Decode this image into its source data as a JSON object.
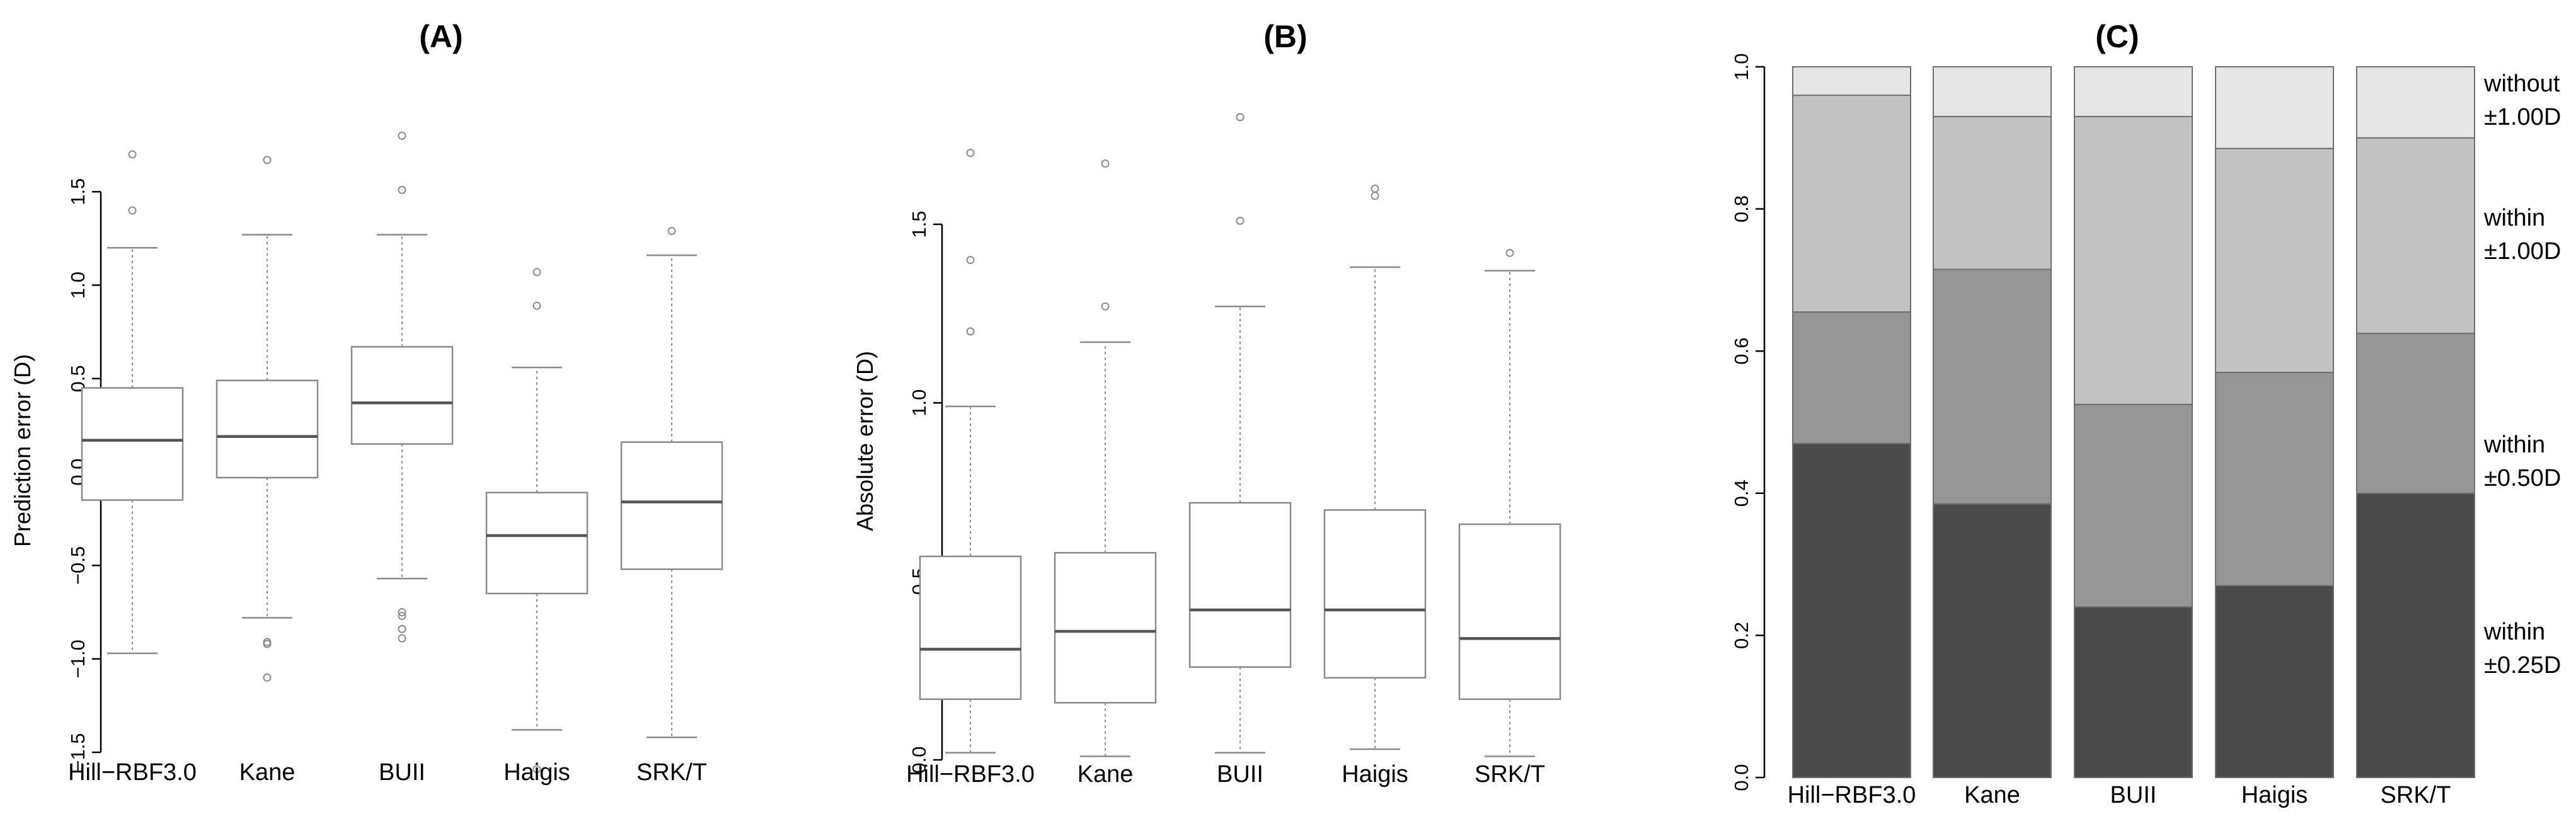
{
  "chart_data": [
    {
      "type": "box",
      "title": "(A)",
      "ylabel": "Prediction error (D)",
      "xlabel": "",
      "ylim": [
        -1.5,
        1.7
      ],
      "yticks": [
        -1.5,
        -1.0,
        -0.5,
        0.0,
        0.5,
        1.0,
        1.5
      ],
      "ytick_labels": [
        "−1.5",
        "−1.0",
        "−0.5",
        "0.0",
        "0.5",
        "1.0",
        "1.5"
      ],
      "categories": [
        "Hill−RBF3.0",
        "Kane",
        "BUII",
        "Haigis",
        "SRK/T"
      ],
      "boxes": [
        {
          "whisker_low": -0.97,
          "q1": -0.15,
          "median": 0.17,
          "q3": 0.45,
          "whisker_high": 1.2,
          "outliers": [
            1.4,
            1.7
          ]
        },
        {
          "whisker_low": -0.78,
          "q1": -0.03,
          "median": 0.19,
          "q3": 0.49,
          "whisker_high": 1.27,
          "outliers": [
            1.67,
            -0.91,
            -0.92,
            -1.1
          ]
        },
        {
          "whisker_low": -0.57,
          "q1": 0.15,
          "median": 0.37,
          "q3": 0.67,
          "whisker_high": 1.27,
          "outliers": [
            1.8,
            1.51,
            -0.75,
            -0.77,
            -0.84,
            -0.89
          ]
        },
        {
          "whisker_low": -1.38,
          "q1": -0.65,
          "median": -0.34,
          "q3": -0.11,
          "whisker_high": 0.56,
          "outliers": [
            1.07,
            0.89,
            -1.59
          ]
        },
        {
          "whisker_low": -1.42,
          "q1": -0.52,
          "median": -0.16,
          "q3": 0.16,
          "whisker_high": 1.16,
          "outliers": [
            1.29
          ]
        }
      ]
    },
    {
      "type": "box",
      "title": "(B)",
      "ylabel": "Absolute error (D)",
      "xlabel": "",
      "ylim": [
        0.0,
        1.8
      ],
      "yticks": [
        0.0,
        0.5,
        1.0,
        1.5
      ],
      "ytick_labels": [
        "0.0",
        "0.5",
        "1.0",
        "1.5"
      ],
      "categories": [
        "Hill−RBF3.0",
        "Kane",
        "BUII",
        "Haigis",
        "SRK/T"
      ],
      "boxes": [
        {
          "whisker_low": 0.02,
          "q1": 0.17,
          "median": 0.31,
          "q3": 0.57,
          "whisker_high": 0.99,
          "outliers": [
            1.7,
            1.4,
            1.2
          ]
        },
        {
          "whisker_low": 0.01,
          "q1": 0.16,
          "median": 0.36,
          "q3": 0.58,
          "whisker_high": 1.17,
          "outliers": [
            1.67,
            1.27
          ]
        },
        {
          "whisker_low": 0.02,
          "q1": 0.26,
          "median": 0.42,
          "q3": 0.72,
          "whisker_high": 1.27,
          "outliers": [
            1.8,
            1.51
          ]
        },
        {
          "whisker_low": 0.03,
          "q1": 0.23,
          "median": 0.42,
          "q3": 0.7,
          "whisker_high": 1.38,
          "outliers": [
            1.6,
            1.58
          ]
        },
        {
          "whisker_low": 0.01,
          "q1": 0.17,
          "median": 0.34,
          "q3": 0.66,
          "whisker_high": 1.37,
          "outliers": [
            1.42
          ]
        }
      ]
    },
    {
      "type": "stacked_bar",
      "title": "(C)",
      "xlabel": "",
      "ylabel": "",
      "ylim": [
        0.0,
        1.0
      ],
      "yticks": [
        0.0,
        0.2,
        0.4,
        0.6,
        0.8,
        1.0
      ],
      "ytick_labels": [
        "0.0",
        "0.2",
        "0.4",
        "0.6",
        "0.8",
        "1.0"
      ],
      "categories": [
        "Hill−RBF3.0",
        "Kane",
        "BUII",
        "Haigis",
        "SRK/T"
      ],
      "series": [
        {
          "name": "within ±0.25D",
          "label_lines": [
            "within",
            "±0.25D"
          ],
          "color": "#4b4b4b",
          "values": [
            0.47,
            0.385,
            0.24,
            0.27,
            0.4
          ]
        },
        {
          "name": "within ±0.50D",
          "label_lines": [
            "within",
            "±0.50D"
          ],
          "color": "#959595",
          "values": [
            0.185,
            0.33,
            0.285,
            0.3,
            0.225
          ]
        },
        {
          "name": "within ±1.00D",
          "label_lines": [
            "within",
            "±1.00D"
          ],
          "color": "#c2c2c2",
          "values": [
            0.305,
            0.215,
            0.405,
            0.315,
            0.275
          ]
        },
        {
          "name": "without ±1.00D",
          "label_lines": [
            "without",
            "±1.00D"
          ],
          "color": "#e5e5e5",
          "values": [
            0.04,
            0.07,
            0.07,
            0.115,
            0.1
          ]
        }
      ],
      "legend": "right"
    }
  ]
}
